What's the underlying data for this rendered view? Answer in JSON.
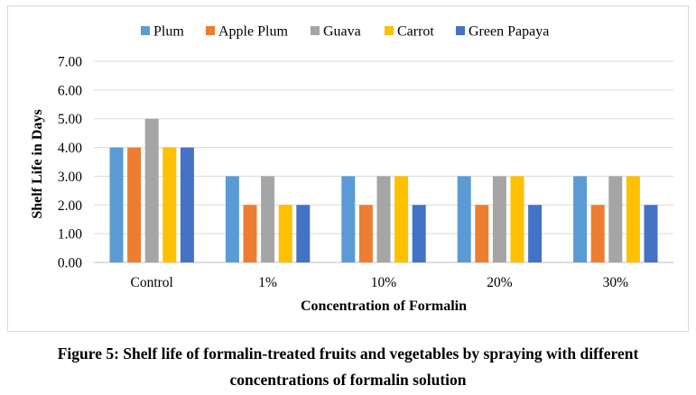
{
  "chart_data": {
    "type": "bar",
    "title": "",
    "xlabel": "Concentration of Formalin",
    "ylabel": "Shelf Life in Days",
    "ylim": [
      0,
      7
    ],
    "y_ticks": [
      "0.00",
      "1.00",
      "2.00",
      "3.00",
      "4.00",
      "5.00",
      "6.00",
      "7.00"
    ],
    "grid": true,
    "legend_position": "top",
    "categories": [
      "Control",
      "1%",
      "10%",
      "20%",
      "30%"
    ],
    "series": [
      {
        "name": "Plum",
        "color": "#5b9bd5",
        "values": [
          4,
          3,
          3,
          3,
          3
        ]
      },
      {
        "name": "Apple Plum",
        "color": "#ed7d31",
        "values": [
          4,
          2,
          2,
          2,
          2
        ]
      },
      {
        "name": "Guava",
        "color": "#a5a5a5",
        "values": [
          5,
          3,
          3,
          3,
          3
        ]
      },
      {
        "name": "Carrot",
        "color": "#ffc000",
        "values": [
          4,
          2,
          3,
          3,
          3
        ]
      },
      {
        "name": "Green Papaya",
        "color": "#4472c4",
        "values": [
          4,
          2,
          2,
          2,
          2
        ]
      }
    ]
  },
  "caption": {
    "line1": "Figure 5: Shelf life of formalin-treated fruits and vegetables by spraying with different",
    "line2": "concentrations of formalin solution"
  }
}
